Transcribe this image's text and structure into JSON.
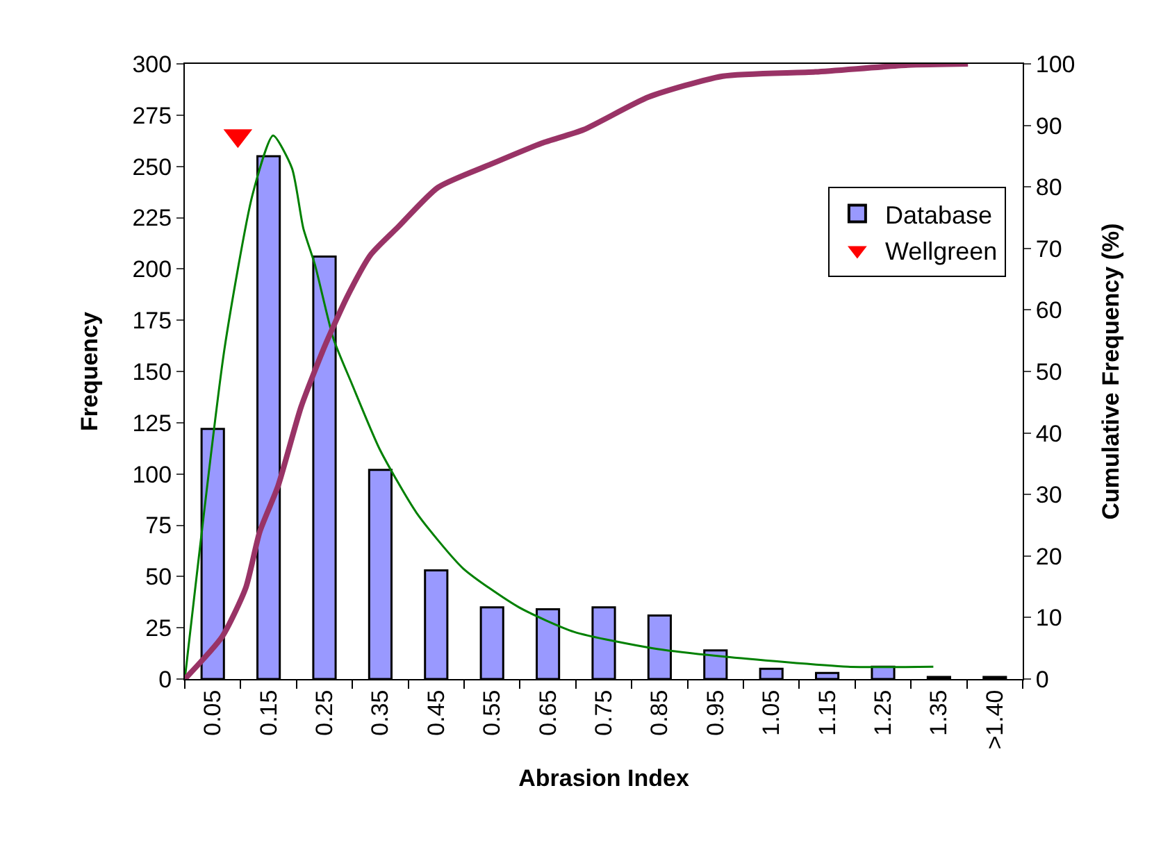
{
  "chart_data": {
    "type": "bar",
    "xlabel": "Abrasion Index",
    "ylabel": "Frequency",
    "y2label": "Cumulative Frequency (%)",
    "x": [
      0.05,
      0.15,
      0.25,
      0.35,
      0.45,
      0.55,
      0.65,
      0.75,
      0.85,
      0.95,
      1.05,
      1.15,
      1.25,
      1.35,
      1.45
    ],
    "xlim": [
      0,
      1.5
    ],
    "xticks": [
      0.05,
      0.15,
      0.25,
      0.35,
      0.45,
      0.55,
      0.65,
      0.75,
      0.85,
      0.95,
      1.05,
      1.15,
      1.25,
      1.35,
      {
        "value": 1.45,
        "label": ">1.40"
      }
    ],
    "ylim": [
      0,
      300
    ],
    "yticks": [
      0,
      25,
      50,
      75,
      100,
      125,
      150,
      175,
      200,
      225,
      250,
      275,
      300
    ],
    "y2lim": [
      0,
      100
    ],
    "y2ticks": [
      0,
      10,
      20,
      30,
      40,
      50,
      60,
      70,
      80,
      90,
      100
    ],
    "grid": false,
    "legend": "right",
    "series": [
      {
        "name": "Database",
        "color": "#9999ff",
        "values": [
          122,
          255,
          206,
          102,
          53,
          35,
          34,
          35,
          31,
          14,
          5,
          3,
          6,
          1,
          1
        ]
      },
      {
        "type": "line",
        "color": "#008000",
        "x": [
          0,
          0.071,
          0.121,
          0.158,
          0.192,
          0.212,
          0.233,
          0.266,
          0.299,
          0.349,
          0.415,
          0.498,
          0.598,
          0.697,
          0.838,
          0.963,
          1.187,
          1.34
        ],
        "values": [
          0,
          161,
          236,
          265,
          249,
          220,
          202,
          166,
          144,
          112,
          81,
          54,
          35,
          23,
          15,
          11,
          6,
          6
        ]
      },
      {
        "type": "line",
        "color": "#993366",
        "axis": "y2",
        "x": [
          0,
          0.067,
          0.109,
          0.134,
          0.167,
          0.208,
          0.25,
          0.291,
          0.333,
          0.382,
          0.453,
          0.548,
          0.639,
          0.714,
          0.83,
          0.963,
          1.129,
          1.294,
          1.402
        ],
        "values": [
          0,
          6.9,
          14.8,
          23.9,
          31.4,
          44.2,
          54,
          62.2,
          69,
          73.5,
          79.9,
          83.7,
          87.1,
          89.3,
          94.6,
          98,
          98.7,
          99.8,
          100
        ]
      },
      {
        "type": "scatter",
        "name": "Wellgreen",
        "color": "#ff0000",
        "marker": "triangle",
        "x": [
          0.095
        ],
        "values": [
          265
        ]
      }
    ]
  }
}
